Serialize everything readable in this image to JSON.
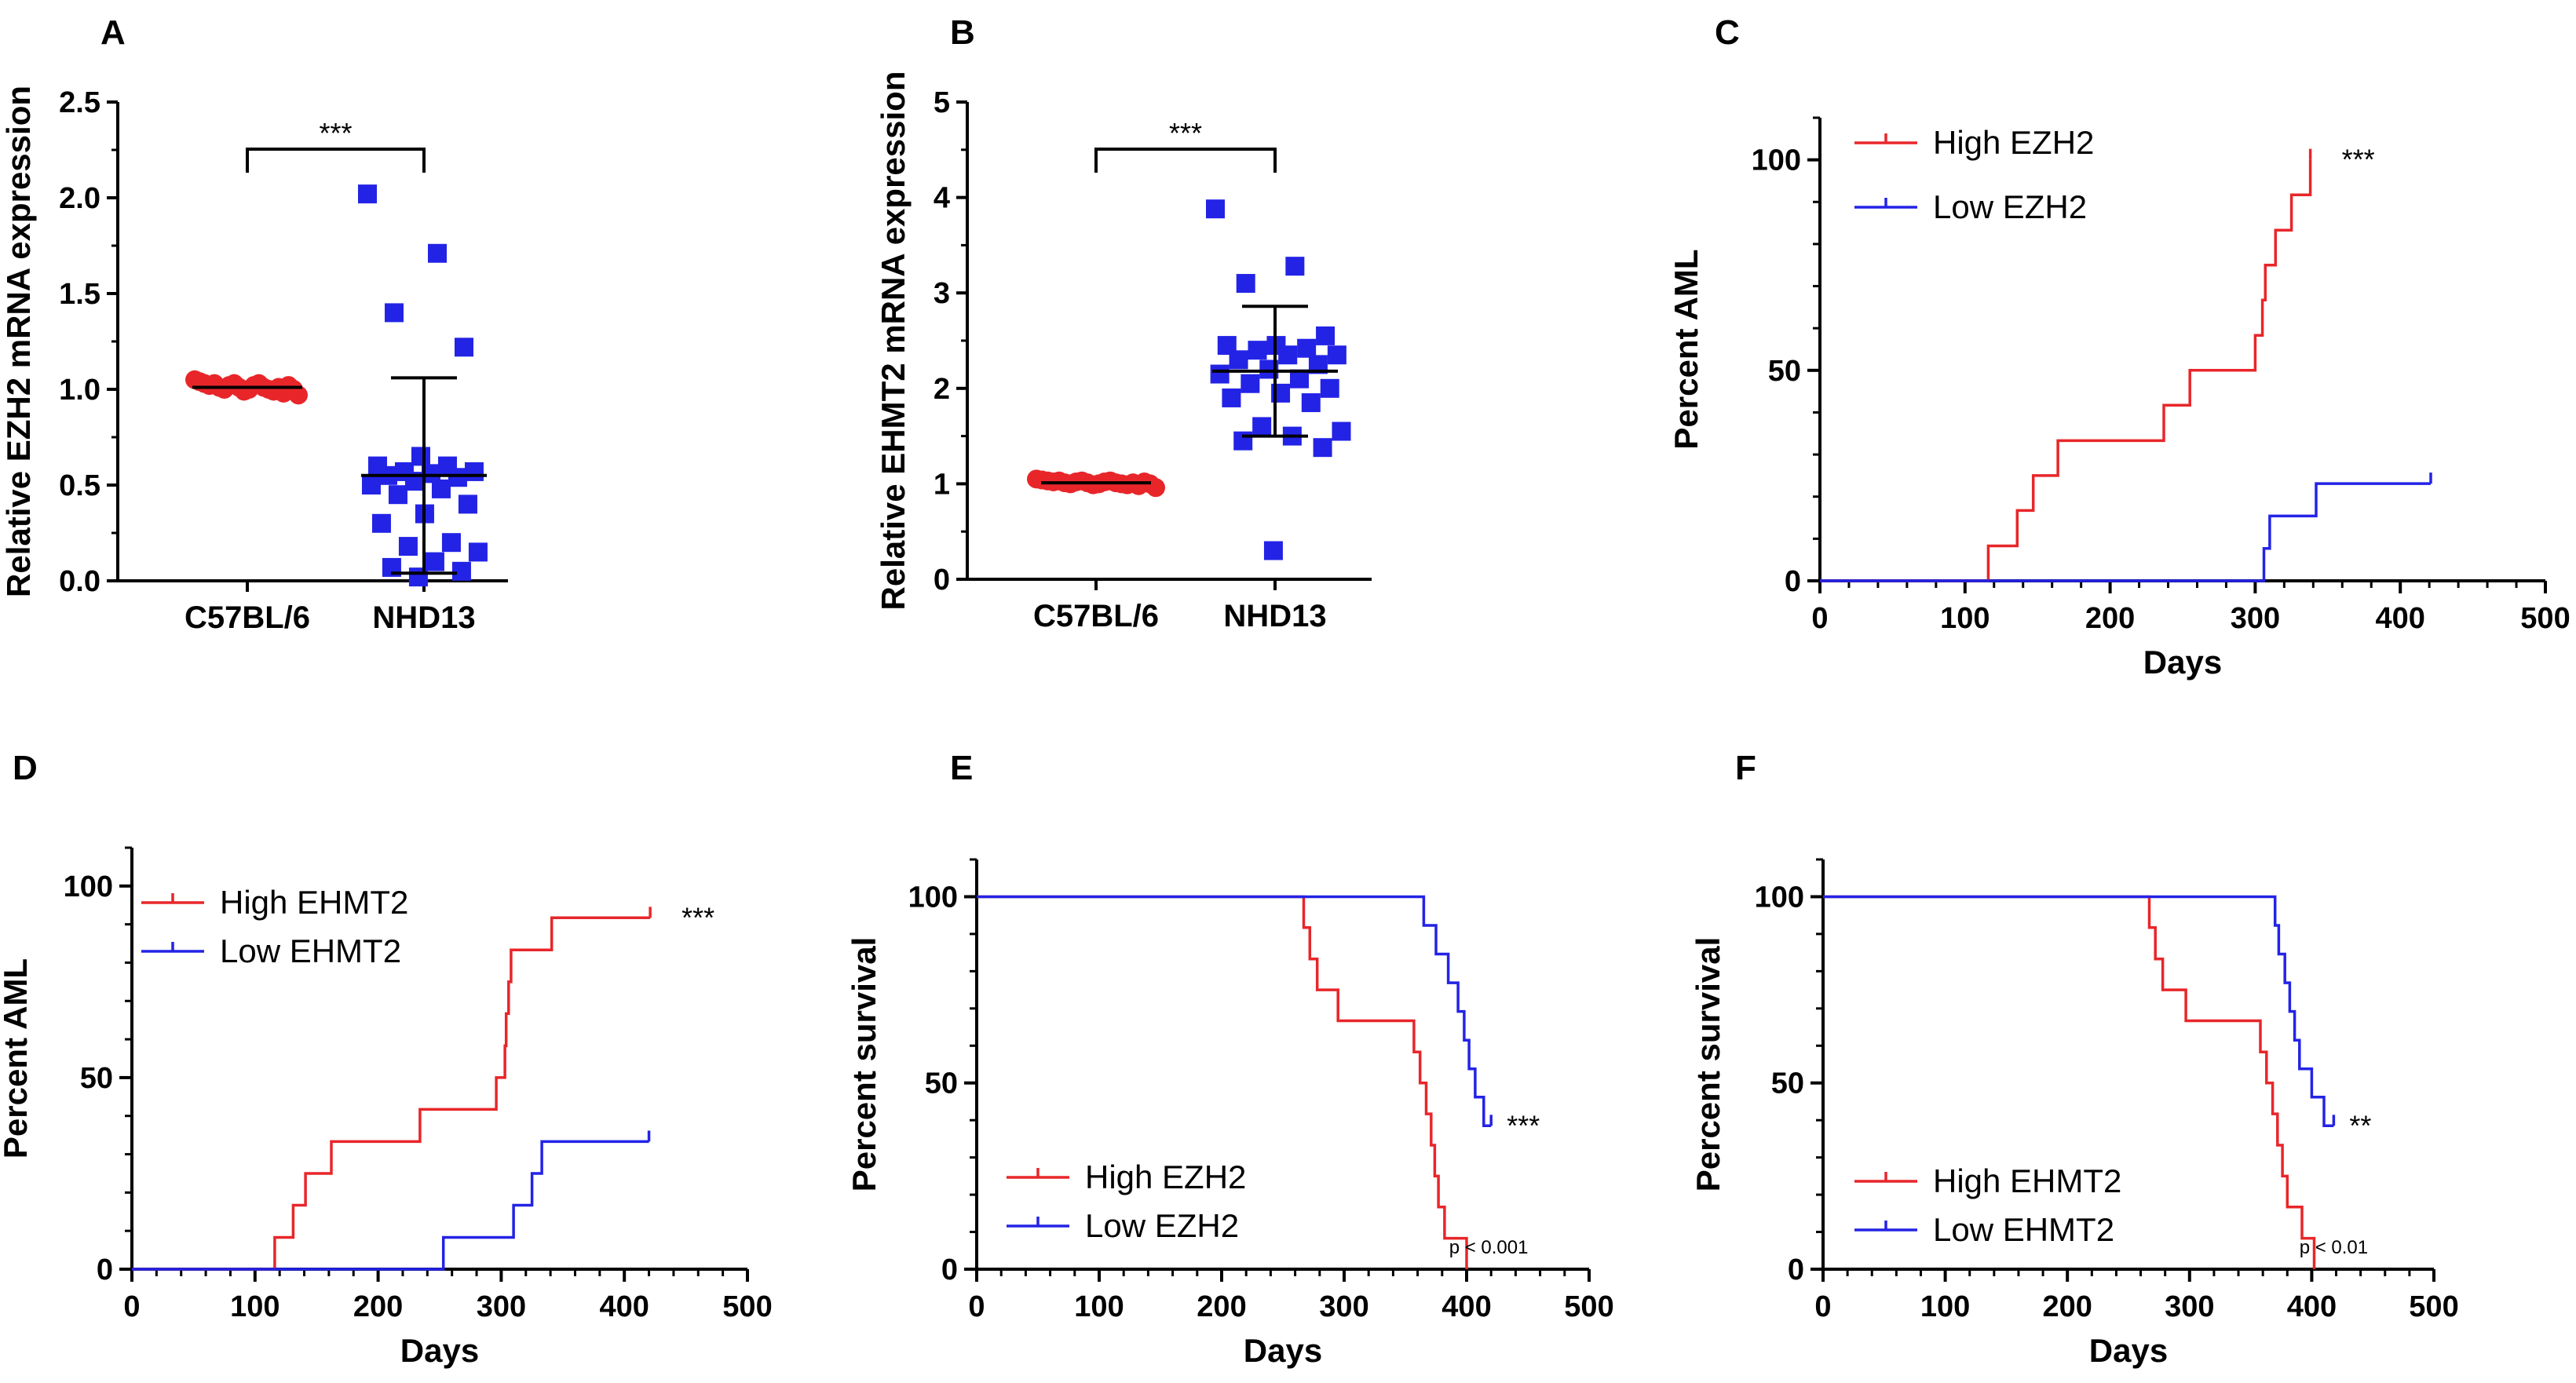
{
  "colors": {
    "high": "#e8262a",
    "low": "#2323e6",
    "axis": "#000000"
  },
  "chart_data": [
    {
      "panel": "A",
      "type": "scatter",
      "ylabel": "Relative EZH2 mRNA expression",
      "categories": [
        "C57BL/6",
        "NHD13"
      ],
      "ylim": [
        0,
        2.5
      ],
      "yticks": [
        "0.0",
        "0.5",
        "1.0",
        "1.5",
        "2.0",
        "2.5"
      ],
      "groups": [
        {
          "name": "C57BL/6",
          "marker": "circle",
          "color": "#e8262a",
          "mean": 1.01,
          "sd": 0.02,
          "points": [
            1.05,
            1.04,
            1.03,
            1.02,
            1.03,
            1.01,
            1.0,
            1.02,
            1.03,
            1.01,
            0.99,
            1.0,
            1.02,
            1.03,
            1.01,
            1.0,
            0.99,
            1.01,
            0.98,
            1.02,
            1.0,
            0.97
          ]
        },
        {
          "name": "NHD13",
          "marker": "square",
          "color": "#2323e6",
          "mean": 0.55,
          "sd": 0.51,
          "points": [
            2.02,
            1.71,
            1.4,
            1.22,
            0.65,
            0.6,
            0.6,
            0.57,
            0.57,
            0.56,
            0.55,
            0.54,
            0.52,
            0.5,
            0.48,
            0.45,
            0.4,
            0.35,
            0.3,
            0.2,
            0.18,
            0.15,
            0.1,
            0.07,
            0.05,
            0.02
          ]
        }
      ],
      "significance": "***"
    },
    {
      "panel": "B",
      "type": "scatter",
      "ylabel": "Relative EHMT2 mRNA expression",
      "categories": [
        "C57BL/6",
        "NHD13"
      ],
      "ylim": [
        0,
        5
      ],
      "yticks": [
        "0",
        "1",
        "2",
        "3",
        "4",
        "5"
      ],
      "groups": [
        {
          "name": "C57BL/6",
          "marker": "circle",
          "color": "#e8262a",
          "mean": 1.01,
          "sd": 0.02,
          "points": [
            1.05,
            1.04,
            1.03,
            1.02,
            1.03,
            1.01,
            1.0,
            1.02,
            1.03,
            1.01,
            0.99,
            1.0,
            1.02,
            1.03,
            1.01,
            1.0,
            0.99,
            1.01,
            0.98,
            1.02,
            1.0,
            0.96
          ]
        },
        {
          "name": "NHD13",
          "marker": "square",
          "color": "#2323e6",
          "mean": 2.18,
          "sd": 0.68,
          "points": [
            3.88,
            3.28,
            3.1,
            2.55,
            2.45,
            2.45,
            2.42,
            2.4,
            2.35,
            2.35,
            2.3,
            2.25,
            2.2,
            2.15,
            2.1,
            2.05,
            2.0,
            1.95,
            1.9,
            1.85,
            1.6,
            1.55,
            1.5,
            1.45,
            1.38,
            0.3
          ]
        }
      ],
      "significance": "***"
    },
    {
      "panel": "C",
      "type": "line",
      "ylabel": "Percent AML",
      "xlabel": "Days",
      "xlim": [
        0,
        500
      ],
      "ylim": [
        0,
        110
      ],
      "xticks": [
        "0",
        "100",
        "200",
        "300",
        "400",
        "500"
      ],
      "yticks": [
        "0",
        "50",
        "100"
      ],
      "series": [
        {
          "name": "High EZH2",
          "color": "#e8262a",
          "points": [
            [
              0,
              0
            ],
            [
              116,
              0
            ],
            [
              116,
              8.3
            ],
            [
              136,
              8.3
            ],
            [
              136,
              16.7
            ],
            [
              147,
              16.7
            ],
            [
              147,
              25
            ],
            [
              164,
              25
            ],
            [
              164,
              33.3
            ],
            [
              237,
              33.3
            ],
            [
              237,
              41.7
            ],
            [
              255,
              41.7
            ],
            [
              255,
              50
            ],
            [
              300,
              50
            ],
            [
              300,
              58.3
            ],
            [
              305,
              58.3
            ],
            [
              305,
              66.7
            ],
            [
              307,
              66.7
            ],
            [
              307,
              75
            ],
            [
              314,
              75
            ],
            [
              314,
              83.3
            ],
            [
              325,
              83.3
            ],
            [
              325,
              91.7
            ],
            [
              338,
              91.7
            ],
            [
              338,
              100
            ]
          ],
          "censor": [
            [
              338,
              100
            ]
          ]
        },
        {
          "name": "Low EZH2",
          "color": "#2323e6",
          "points": [
            [
              0,
              0
            ],
            [
              306,
              0
            ],
            [
              306,
              7.7
            ],
            [
              310,
              7.7
            ],
            [
              310,
              15.4
            ],
            [
              342,
              15.4
            ],
            [
              342,
              23.1
            ],
            [
              421,
              23.1
            ]
          ],
          "censor": [
            [
              421,
              23.1
            ]
          ]
        }
      ],
      "significance": "***"
    },
    {
      "panel": "D",
      "type": "line",
      "ylabel": "Percent AML",
      "xlabel": "Days",
      "xlim": [
        0,
        500
      ],
      "ylim": [
        0,
        110
      ],
      "xticks": [
        "0",
        "100",
        "200",
        "300",
        "400",
        "500"
      ],
      "yticks": [
        "0",
        "50",
        "100"
      ],
      "series": [
        {
          "name": "High EHMT2",
          "color": "#e8262a",
          "points": [
            [
              0,
              0
            ],
            [
              116,
              0
            ],
            [
              116,
              8.3
            ],
            [
              131,
              8.3
            ],
            [
              131,
              16.7
            ],
            [
              141,
              16.7
            ],
            [
              141,
              25
            ],
            [
              162,
              25
            ],
            [
              162,
              33.3
            ],
            [
              234,
              33.3
            ],
            [
              234,
              41.7
            ],
            [
              296,
              41.7
            ],
            [
              296,
              50
            ],
            [
              303,
              50
            ],
            [
              303,
              58.3
            ],
            [
              304,
              58.3
            ],
            [
              304,
              66.7
            ],
            [
              306,
              66.7
            ],
            [
              306,
              75
            ],
            [
              308,
              75
            ],
            [
              308,
              83.3
            ],
            [
              341,
              83.3
            ],
            [
              341,
              91.7
            ],
            [
              421,
              91.7
            ]
          ],
          "censor": [
            [
              421,
              91.7
            ]
          ]
        },
        {
          "name": "Low EHMT2",
          "color": "#2323e6",
          "points": [
            [
              0,
              0
            ],
            [
              253,
              0
            ],
            [
              253,
              8.3
            ],
            [
              310,
              8.3
            ],
            [
              310,
              16.7
            ],
            [
              325,
              16.7
            ],
            [
              325,
              25
            ],
            [
              333,
              25
            ],
            [
              333,
              33.3
            ],
            [
              420,
              33.3
            ]
          ],
          "censor": [
            [
              420,
              33.3
            ]
          ]
        }
      ],
      "significance": "***"
    },
    {
      "panel": "E",
      "type": "line",
      "ylabel": "Percent survival",
      "xlabel": "Days",
      "xlim": [
        0,
        500
      ],
      "ylim": [
        0,
        110
      ],
      "xticks": [
        "0",
        "100",
        "200",
        "300",
        "400",
        "500"
      ],
      "yticks": [
        "0",
        "50",
        "100"
      ],
      "series": [
        {
          "name": "High EZH2",
          "color": "#e8262a",
          "points": [
            [
              0,
              100
            ],
            [
              267,
              100
            ],
            [
              267,
              91.7
            ],
            [
              272,
              91.7
            ],
            [
              272,
              83.3
            ],
            [
              278,
              83.3
            ],
            [
              278,
              75
            ],
            [
              295,
              75
            ],
            [
              295,
              66.7
            ],
            [
              357,
              66.7
            ],
            [
              357,
              58.3
            ],
            [
              362,
              58.3
            ],
            [
              362,
              50
            ],
            [
              367,
              50
            ],
            [
              367,
              41.7
            ],
            [
              371,
              41.7
            ],
            [
              371,
              33.3
            ],
            [
              374,
              33.3
            ],
            [
              374,
              25
            ],
            [
              377,
              25
            ],
            [
              377,
              16.7
            ],
            [
              382,
              16.7
            ],
            [
              382,
              8.3
            ],
            [
              400,
              8.3
            ],
            [
              400,
              0
            ]
          ],
          "censor": []
        },
        {
          "name": "Low EZH2",
          "color": "#2323e6",
          "points": [
            [
              0,
              100
            ],
            [
              365,
              100
            ],
            [
              365,
              92.3
            ],
            [
              375,
              92.3
            ],
            [
              375,
              84.6
            ],
            [
              385,
              84.6
            ],
            [
              385,
              76.9
            ],
            [
              393,
              76.9
            ],
            [
              393,
              69.2
            ],
            [
              398,
              69.2
            ],
            [
              398,
              61.5
            ],
            [
              402,
              61.5
            ],
            [
              402,
              53.8
            ],
            [
              407,
              53.8
            ],
            [
              407,
              46.2
            ],
            [
              414,
              46.2
            ],
            [
              414,
              38.5
            ],
            [
              420,
              38.5
            ]
          ],
          "censor": [
            [
              420,
              38.5
            ]
          ]
        }
      ],
      "significance": "***",
      "pvalue": "p < 0.001"
    },
    {
      "panel": "F",
      "type": "line",
      "ylabel": "Percent survival",
      "xlabel": "Days",
      "xlim": [
        0,
        500
      ],
      "ylim": [
        0,
        110
      ],
      "xticks": [
        "0",
        "100",
        "200",
        "300",
        "400",
        "500"
      ],
      "yticks": [
        "0",
        "50",
        "100"
      ],
      "series": [
        {
          "name": "High EHMT2",
          "color": "#e8262a",
          "points": [
            [
              0,
              100
            ],
            [
              267,
              100
            ],
            [
              267,
              91.7
            ],
            [
              272,
              91.7
            ],
            [
              272,
              83.3
            ],
            [
              278,
              83.3
            ],
            [
              278,
              75
            ],
            [
              297,
              75
            ],
            [
              297,
              66.7
            ],
            [
              358,
              66.7
            ],
            [
              358,
              58.3
            ],
            [
              363,
              58.3
            ],
            [
              363,
              50
            ],
            [
              368,
              50
            ],
            [
              368,
              41.7
            ],
            [
              372,
              41.7
            ],
            [
              372,
              33.3
            ],
            [
              376,
              33.3
            ],
            [
              376,
              25
            ],
            [
              380,
              25
            ],
            [
              380,
              16.7
            ],
            [
              392,
              16.7
            ],
            [
              392,
              8.3
            ],
            [
              402,
              8.3
            ],
            [
              402,
              0
            ]
          ],
          "censor": []
        },
        {
          "name": "Low EHMT2",
          "color": "#2323e6",
          "points": [
            [
              0,
              100
            ],
            [
              370,
              100
            ],
            [
              370,
              92.3
            ],
            [
              373,
              92.3
            ],
            [
              373,
              84.6
            ],
            [
              378,
              84.6
            ],
            [
              378,
              76.9
            ],
            [
              382,
              76.9
            ],
            [
              382,
              69.2
            ],
            [
              386,
              69.2
            ],
            [
              386,
              61.5
            ],
            [
              390,
              61.5
            ],
            [
              390,
              53.8
            ],
            [
              400,
              53.8
            ],
            [
              400,
              46.2
            ],
            [
              410,
              46.2
            ],
            [
              410,
              38.5
            ],
            [
              418,
              38.5
            ]
          ],
          "censor": [
            [
              418,
              38.5
            ]
          ]
        }
      ],
      "significance": "**",
      "pvalue": "p < 0.01"
    }
  ]
}
